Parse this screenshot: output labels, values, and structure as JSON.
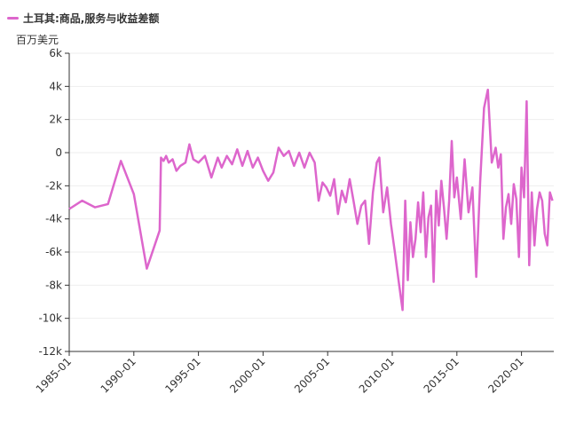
{
  "legend": {
    "label": "土耳其:商品,服务与收益差额",
    "color": "#dd66cc"
  },
  "unit_label": "百万美元",
  "chart_data": {
    "type": "line",
    "ylim": [
      -12000,
      6000
    ],
    "yticks": [
      -12000,
      -10000,
      -8000,
      -6000,
      -4000,
      -2000,
      0,
      2000,
      4000,
      6000
    ],
    "ytick_labels": [
      "-12k",
      "-10k",
      "-8k",
      "-6k",
      "-4k",
      "-2k",
      "0",
      "2k",
      "4k",
      "6k"
    ],
    "xlim": [
      1985.0,
      2022.5
    ],
    "xticks": [
      1985,
      1990,
      1995,
      2000,
      2005,
      2010,
      2015,
      2020
    ],
    "xtick_labels": [
      "1985-01",
      "1990-01",
      "1995-01",
      "2000-01",
      "2005-01",
      "2010-01",
      "2015-01",
      "2020-01"
    ],
    "grid": true,
    "series": [
      {
        "name": "土耳其:商品,服务与收益差额",
        "color": "#dd66cc",
        "x": [
          1985.0,
          1986.0,
          1987.0,
          1988.0,
          1989.0,
          1990.0,
          1991.0,
          1992.0,
          1992.1,
          1992.3,
          1992.5,
          1992.7,
          1993.0,
          1993.3,
          1993.6,
          1994.0,
          1994.3,
          1994.6,
          1995.0,
          1995.5,
          1996.0,
          1996.5,
          1996.8,
          1997.2,
          1997.6,
          1998.0,
          1998.4,
          1998.8,
          1999.2,
          1999.6,
          2000.0,
          2000.4,
          2000.8,
          2001.2,
          2001.6,
          2002.0,
          2002.4,
          2002.8,
          2003.2,
          2003.6,
          2004.0,
          2004.3,
          2004.6,
          2004.9,
          2005.2,
          2005.5,
          2005.8,
          2006.1,
          2006.4,
          2006.7,
          2007.0,
          2007.3,
          2007.6,
          2007.9,
          2008.2,
          2008.5,
          2008.8,
          2009.0,
          2009.3,
          2009.6,
          2009.9,
          2010.2,
          2010.5,
          2010.8,
          2011.0,
          2011.2,
          2011.4,
          2011.6,
          2011.8,
          2012.0,
          2012.2,
          2012.4,
          2012.6,
          2012.8,
          2013.0,
          2013.2,
          2013.4,
          2013.6,
          2013.8,
          2014.0,
          2014.2,
          2014.4,
          2014.6,
          2014.8,
          2015.0,
          2015.3,
          2015.6,
          2015.9,
          2016.2,
          2016.5,
          2016.8,
          2017.1,
          2017.4,
          2017.7,
          2018.0,
          2018.2,
          2018.4,
          2018.6,
          2018.8,
          2019.0,
          2019.2,
          2019.4,
          2019.6,
          2019.8,
          2020.0,
          2020.2,
          2020.4,
          2020.6,
          2020.8,
          2021.0,
          2021.2,
          2021.4,
          2021.6,
          2021.8,
          2022.0,
          2022.2,
          2022.4
        ],
        "y": [
          -3400,
          -2900,
          -3300,
          -3100,
          -500,
          -2500,
          -7000,
          -4700,
          -300,
          -500,
          -200,
          -600,
          -400,
          -1100,
          -800,
          -600,
          500,
          -400,
          -600,
          -200,
          -1500,
          -300,
          -900,
          -200,
          -700,
          200,
          -800,
          100,
          -900,
          -300,
          -1100,
          -1700,
          -1200,
          300,
          -200,
          100,
          -800,
          0,
          -900,
          0,
          -600,
          -2900,
          -1800,
          -2100,
          -2600,
          -1600,
          -3700,
          -2300,
          -3000,
          -1600,
          -2900,
          -4300,
          -3200,
          -2900,
          -5500,
          -2400,
          -600,
          -300,
          -3600,
          -2100,
          -4300,
          -6000,
          -7800,
          -9500,
          -2900,
          -7700,
          -4200,
          -6300,
          -5200,
          -3000,
          -4800,
          -2400,
          -6300,
          -3900,
          -3200,
          -7800,
          -2300,
          -4400,
          -1700,
          -3300,
          -5200,
          -2900,
          700,
          -2700,
          -1500,
          -4000,
          -400,
          -3600,
          -2100,
          -7500,
          -1800,
          2700,
          3800,
          -600,
          300,
          -900,
          -100,
          -5200,
          -3300,
          -2500,
          -4300,
          -1900,
          -2800,
          -6300,
          -900,
          -2700,
          3100,
          -6800,
          -2400,
          -5600,
          -3400,
          -2400,
          -2900,
          -4900,
          -5600,
          -2400,
          -2900
        ]
      }
    ]
  }
}
